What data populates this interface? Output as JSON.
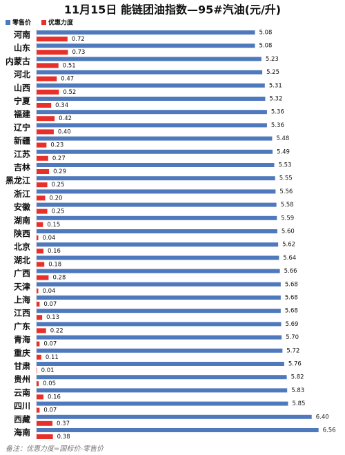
{
  "chart_data": {
    "type": "bar",
    "orientation": "horizontal",
    "title": "11月15日 能链团油指数—95#汽油(元/升)",
    "categories": [
      "河南",
      "山东",
      "内蒙古",
      "河北",
      "山西",
      "宁夏",
      "福建",
      "辽宁",
      "新疆",
      "江苏",
      "吉林",
      "黑龙江",
      "浙江",
      "安徽",
      "湖南",
      "陕西",
      "北京",
      "湖北",
      "广西",
      "天津",
      "上海",
      "江西",
      "广东",
      "青海",
      "重庆",
      "甘肃",
      "贵州",
      "云南",
      "四川",
      "西藏",
      "海南"
    ],
    "series": [
      {
        "name": "零售价",
        "color": "#4f79bd",
        "values": [
          5.08,
          5.08,
          5.23,
          5.25,
          5.31,
          5.32,
          5.36,
          5.36,
          5.48,
          5.49,
          5.53,
          5.55,
          5.56,
          5.58,
          5.59,
          5.6,
          5.62,
          5.64,
          5.66,
          5.68,
          5.68,
          5.68,
          5.69,
          5.7,
          5.72,
          5.76,
          5.82,
          5.83,
          5.85,
          6.4,
          6.56
        ],
        "value_labels": [
          "5.08",
          "5.08",
          "5.23",
          "5.25",
          "5.31",
          "5.32",
          "5.36",
          "5.36",
          "5.48",
          "5.49",
          "5.53",
          "5.55",
          "5.56",
          "5.58",
          "5.59",
          "5.60",
          "5.62",
          "5.64",
          "5.66",
          "5.68",
          "5.68",
          "5.68",
          "5.69",
          "5.70",
          "5.72",
          "5.76",
          "5.82",
          "5.83",
          "5.85",
          "6.40",
          "6.56"
        ]
      },
      {
        "name": "优惠力度",
        "color": "#e8302a",
        "values": [
          0.72,
          0.73,
          0.51,
          0.47,
          0.52,
          0.34,
          0.42,
          0.4,
          0.23,
          0.27,
          0.29,
          0.25,
          0.2,
          0.25,
          0.15,
          0.04,
          0.16,
          0.18,
          0.28,
          0.04,
          0.07,
          0.13,
          0.22,
          0.07,
          0.11,
          0.01,
          0.05,
          0.16,
          0.07,
          0.37,
          0.38
        ],
        "value_labels": [
          "0.72",
          "0.73",
          "0.51",
          "0.47",
          "0.52",
          "0.34",
          "0.42",
          "0.40",
          "0.23",
          "0.27",
          "0.29",
          "0.25",
          "0.20",
          "0.25",
          "0.15",
          "0.04",
          "0.16",
          "0.18",
          "0.28",
          "0.04",
          "0.07",
          "0.13",
          "0.22",
          "0.07",
          "0.11",
          "0.01",
          "0.05",
          "0.16",
          "0.07",
          "0.37",
          "0.38"
        ]
      }
    ],
    "note": "备注：优惠力度=国标价-零售价"
  }
}
